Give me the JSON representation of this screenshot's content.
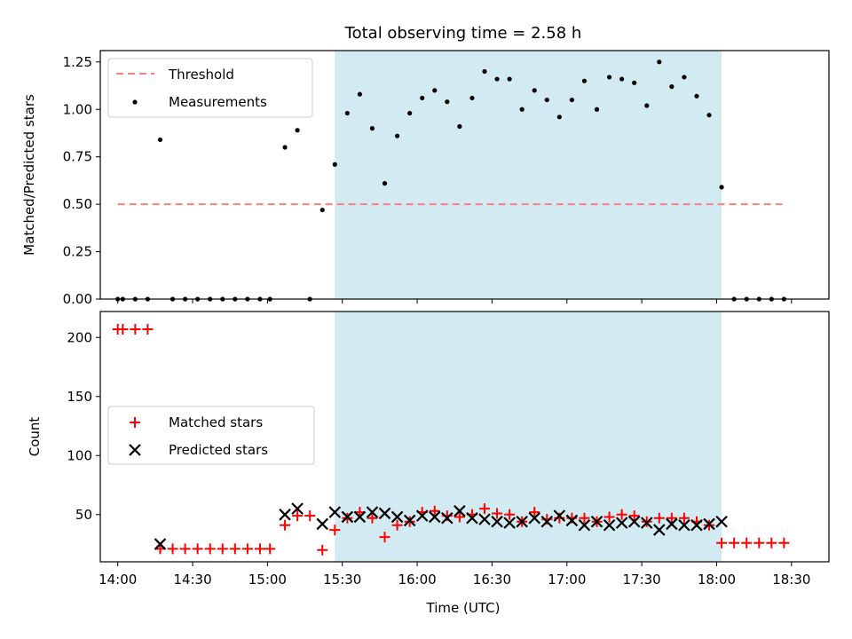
{
  "figure": {
    "title": "Total observing time = 2.58 h"
  },
  "chart_data": [
    {
      "type": "scatter",
      "ylabel": "Matched/Predicted stars",
      "xlabel": "",
      "ylim": [
        0,
        1.31
      ],
      "yticks": [
        0.0,
        0.25,
        0.5,
        0.75,
        1.0,
        1.25
      ],
      "ytick_labels": [
        "0.00",
        "0.25",
        "0.50",
        "0.75",
        "1.00",
        "1.25"
      ],
      "x_time_range": [
        "13:53",
        "18:45"
      ],
      "xticks": [
        "14:00",
        "14:30",
        "15:00",
        "15:30",
        "16:00",
        "16:30",
        "17:00",
        "17:30",
        "18:00",
        "18:30"
      ],
      "shaded_interval": [
        "15:27",
        "18:02"
      ],
      "shaded_color": "#add8e6",
      "legend_position": "upper-left",
      "threshold": {
        "name": "Threshold",
        "value": 0.5,
        "x_range": [
          "14:00",
          "18:27"
        ],
        "color": "#ff7f7f"
      },
      "series": [
        {
          "name": "Measurements",
          "color": "#000000",
          "points": [
            [
              "14:00",
              0.0
            ],
            [
              "14:02",
              0.0
            ],
            [
              "14:07",
              0.0
            ],
            [
              "14:12",
              0.0
            ],
            [
              "14:17",
              0.84
            ],
            [
              "14:22",
              0.0
            ],
            [
              "14:27",
              0.0
            ],
            [
              "14:32",
              0.0
            ],
            [
              "14:37",
              0.0
            ],
            [
              "14:42",
              0.0
            ],
            [
              "14:47",
              0.0
            ],
            [
              "14:52",
              0.0
            ],
            [
              "14:57",
              0.0
            ],
            [
              "15:01",
              0.0
            ],
            [
              "15:07",
              0.8
            ],
            [
              "15:12",
              0.89
            ],
            [
              "15:17",
              0.0
            ],
            [
              "15:22",
              0.47
            ],
            [
              "15:27",
              0.71
            ],
            [
              "15:32",
              0.98
            ],
            [
              "15:37",
              1.08
            ],
            [
              "15:42",
              0.9
            ],
            [
              "15:47",
              0.61
            ],
            [
              "15:52",
              0.86
            ],
            [
              "15:57",
              0.98
            ],
            [
              "16:02",
              1.06
            ],
            [
              "16:07",
              1.1
            ],
            [
              "16:12",
              1.04
            ],
            [
              "16:17",
              0.91
            ],
            [
              "16:22",
              1.06
            ],
            [
              "16:27",
              1.2
            ],
            [
              "16:32",
              1.16
            ],
            [
              "16:37",
              1.16
            ],
            [
              "16:42",
              1.0
            ],
            [
              "16:47",
              1.1
            ],
            [
              "16:52",
              1.05
            ],
            [
              "16:57",
              0.96
            ],
            [
              "17:02",
              1.05
            ],
            [
              "17:07",
              1.15
            ],
            [
              "17:12",
              1.0
            ],
            [
              "17:17",
              1.17
            ],
            [
              "17:22",
              1.16
            ],
            [
              "17:27",
              1.14
            ],
            [
              "17:32",
              1.02
            ],
            [
              "17:37",
              1.25
            ],
            [
              "17:42",
              1.12
            ],
            [
              "17:47",
              1.17
            ],
            [
              "17:52",
              1.07
            ],
            [
              "17:57",
              0.97
            ],
            [
              "18:02",
              0.59
            ],
            [
              "18:07",
              0.0
            ],
            [
              "18:12",
              0.0
            ],
            [
              "18:17",
              0.0
            ],
            [
              "18:22",
              0.0
            ],
            [
              "18:27",
              0.0
            ]
          ]
        }
      ]
    },
    {
      "type": "scatter",
      "ylabel": "Count",
      "xlabel": "Time (UTC)",
      "ylim": [
        10,
        222
      ],
      "yticks": [
        50,
        100,
        150,
        200
      ],
      "ytick_labels": [
        "50",
        "100",
        "150",
        "200"
      ],
      "x_time_range": [
        "13:53",
        "18:45"
      ],
      "xticks": [
        "14:00",
        "14:30",
        "15:00",
        "15:30",
        "16:00",
        "16:30",
        "17:00",
        "17:30",
        "18:00",
        "18:30"
      ],
      "shaded_interval": [
        "15:27",
        "18:02"
      ],
      "shaded_color": "#add8e6",
      "legend_position": "center-left",
      "series": [
        {
          "name": "Matched stars",
          "marker": "+",
          "color": "#ff0000",
          "points": [
            [
              "14:00",
              207
            ],
            [
              "14:02",
              207
            ],
            [
              "14:07",
              207
            ],
            [
              "14:12",
              207
            ],
            [
              "14:17",
              21
            ],
            [
              "14:22",
              21
            ],
            [
              "14:27",
              21
            ],
            [
              "14:32",
              21
            ],
            [
              "14:37",
              21
            ],
            [
              "14:42",
              21
            ],
            [
              "14:47",
              21
            ],
            [
              "14:52",
              21
            ],
            [
              "14:57",
              21
            ],
            [
              "15:01",
              21
            ],
            [
              "15:07",
              41
            ],
            [
              "15:12",
              49
            ],
            [
              "15:17",
              49
            ],
            [
              "15:22",
              20
            ],
            [
              "15:27",
              37
            ],
            [
              "15:32",
              47
            ],
            [
              "15:37",
              52
            ],
            [
              "15:42",
              47
            ],
            [
              "15:47",
              31
            ],
            [
              "15:52",
              41
            ],
            [
              "15:57",
              44
            ],
            [
              "16:02",
              52
            ],
            [
              "16:07",
              53
            ],
            [
              "16:12",
              49
            ],
            [
              "16:17",
              48
            ],
            [
              "16:22",
              50
            ],
            [
              "16:27",
              55
            ],
            [
              "16:32",
              51
            ],
            [
              "16:37",
              50
            ],
            [
              "16:42",
              44
            ],
            [
              "16:47",
              52
            ],
            [
              "16:52",
              46
            ],
            [
              "16:57",
              47
            ],
            [
              "17:02",
              47
            ],
            [
              "17:07",
              47
            ],
            [
              "17:12",
              44
            ],
            [
              "17:17",
              48
            ],
            [
              "17:22",
              50
            ],
            [
              "17:27",
              49
            ],
            [
              "17:32",
              44
            ],
            [
              "17:37",
              47
            ],
            [
              "17:42",
              47
            ],
            [
              "17:47",
              47
            ],
            [
              "17:52",
              44
            ],
            [
              "17:57",
              41
            ],
            [
              "18:02",
              26
            ],
            [
              "18:07",
              26
            ],
            [
              "18:12",
              26
            ],
            [
              "18:17",
              26
            ],
            [
              "18:22",
              26
            ],
            [
              "18:27",
              26
            ]
          ]
        },
        {
          "name": "Predicted stars",
          "marker": "x",
          "color": "#000000",
          "points": [
            [
              "14:17",
              25
            ],
            [
              "15:07",
              50
            ],
            [
              "15:12",
              55
            ],
            [
              "15:22",
              42
            ],
            [
              "15:27",
              52
            ],
            [
              "15:32",
              48
            ],
            [
              "15:37",
              48
            ],
            [
              "15:42",
              52
            ],
            [
              "15:47",
              51
            ],
            [
              "15:52",
              48
            ],
            [
              "15:57",
              45
            ],
            [
              "16:02",
              49
            ],
            [
              "16:07",
              48
            ],
            [
              "16:12",
              47
            ],
            [
              "16:17",
              53
            ],
            [
              "16:22",
              47
            ],
            [
              "16:27",
              46
            ],
            [
              "16:32",
              44
            ],
            [
              "16:37",
              43
            ],
            [
              "16:42",
              44
            ],
            [
              "16:47",
              47
            ],
            [
              "16:52",
              44
            ],
            [
              "16:57",
              49
            ],
            [
              "17:02",
              45
            ],
            [
              "17:07",
              41
            ],
            [
              "17:12",
              44
            ],
            [
              "17:17",
              41
            ],
            [
              "17:22",
              43
            ],
            [
              "17:27",
              44
            ],
            [
              "17:32",
              43
            ],
            [
              "17:37",
              37
            ],
            [
              "17:42",
              42
            ],
            [
              "17:47",
              41
            ],
            [
              "17:52",
              41
            ],
            [
              "17:57",
              42
            ],
            [
              "18:02",
              44
            ]
          ]
        }
      ]
    }
  ]
}
